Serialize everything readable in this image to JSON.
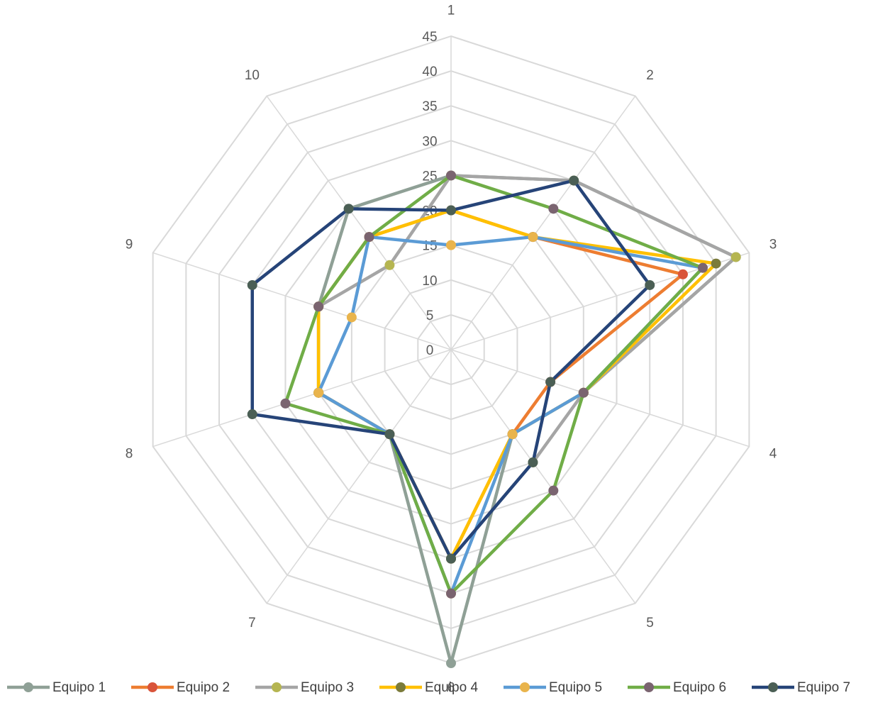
{
  "chart_data": {
    "type": "radar",
    "categories": [
      "1",
      "2",
      "3",
      "4",
      "5",
      "6",
      "7",
      "8",
      "9",
      "10"
    ],
    "rlim": [
      0,
      45
    ],
    "ticks": [
      0,
      5,
      10,
      15,
      20,
      25,
      30,
      35,
      40,
      45
    ],
    "grid": true,
    "legend": "bottom",
    "series": [
      {
        "name": "Equipo 1",
        "line_color": "#8fa096",
        "marker_color": "#8fa096",
        "values": [
          25,
          30,
          43,
          20,
          15,
          45,
          15,
          20,
          20,
          25
        ]
      },
      {
        "name": "Equipo 2",
        "line_color": "#ed7d31",
        "marker_color": "#d9543a",
        "values": [
          20,
          20,
          35,
          15,
          15,
          30,
          15,
          20,
          20,
          20
        ]
      },
      {
        "name": "Equipo 3",
        "line_color": "#a5a5a5",
        "marker_color": "#b5b551",
        "values": [
          25,
          30,
          43,
          20,
          20,
          30,
          15,
          20,
          20,
          15
        ]
      },
      {
        "name": "Equipo 4",
        "line_color": "#ffc000",
        "marker_color": "#7b7b3a",
        "values": [
          20,
          20,
          40,
          20,
          15,
          30,
          15,
          20,
          20,
          20
        ]
      },
      {
        "name": "Equipo 5",
        "line_color": "#5b9bd5",
        "marker_color": "#e9b44c",
        "values": [
          15,
          20,
          38,
          20,
          15,
          35,
          15,
          20,
          15,
          20
        ]
      },
      {
        "name": "Equipo 6",
        "line_color": "#70ad47",
        "marker_color": "#7a6470",
        "values": [
          25,
          25,
          38,
          20,
          25,
          35,
          15,
          25,
          20,
          20
        ]
      },
      {
        "name": "Equipo 7",
        "line_color": "#264478",
        "marker_color": "#4b5f55",
        "values": [
          20,
          30,
          30,
          15,
          20,
          30,
          15,
          30,
          30,
          25
        ]
      }
    ]
  }
}
